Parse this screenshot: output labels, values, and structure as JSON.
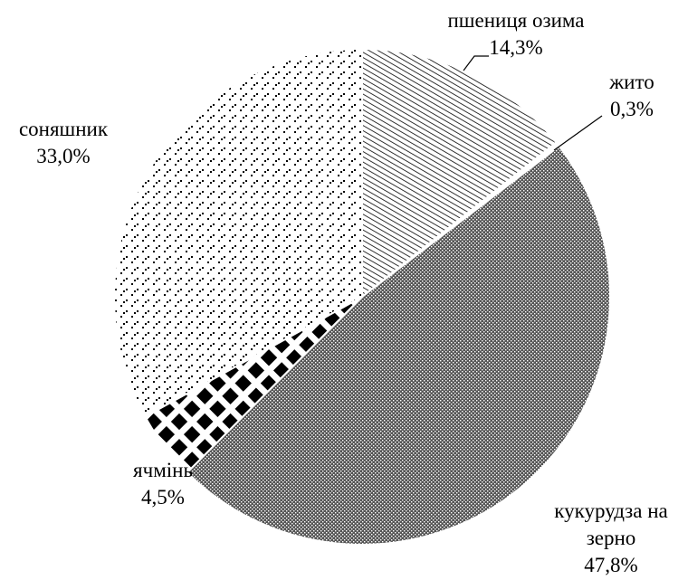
{
  "chart_data": {
    "type": "pie",
    "categories": [
      "пшениця озима",
      "жито",
      "кукурудза на зерно",
      "ячмінь",
      "соняшник"
    ],
    "values": [
      14.3,
      0.3,
      47.8,
      4.5,
      33.0
    ],
    "value_labels": [
      "14,3%",
      "0,3%",
      "47,8%",
      "4,5%",
      "33,0%"
    ],
    "patterns": [
      "diagonal",
      "none",
      "dots-dense",
      "diamonds",
      "dots-sparse"
    ]
  }
}
